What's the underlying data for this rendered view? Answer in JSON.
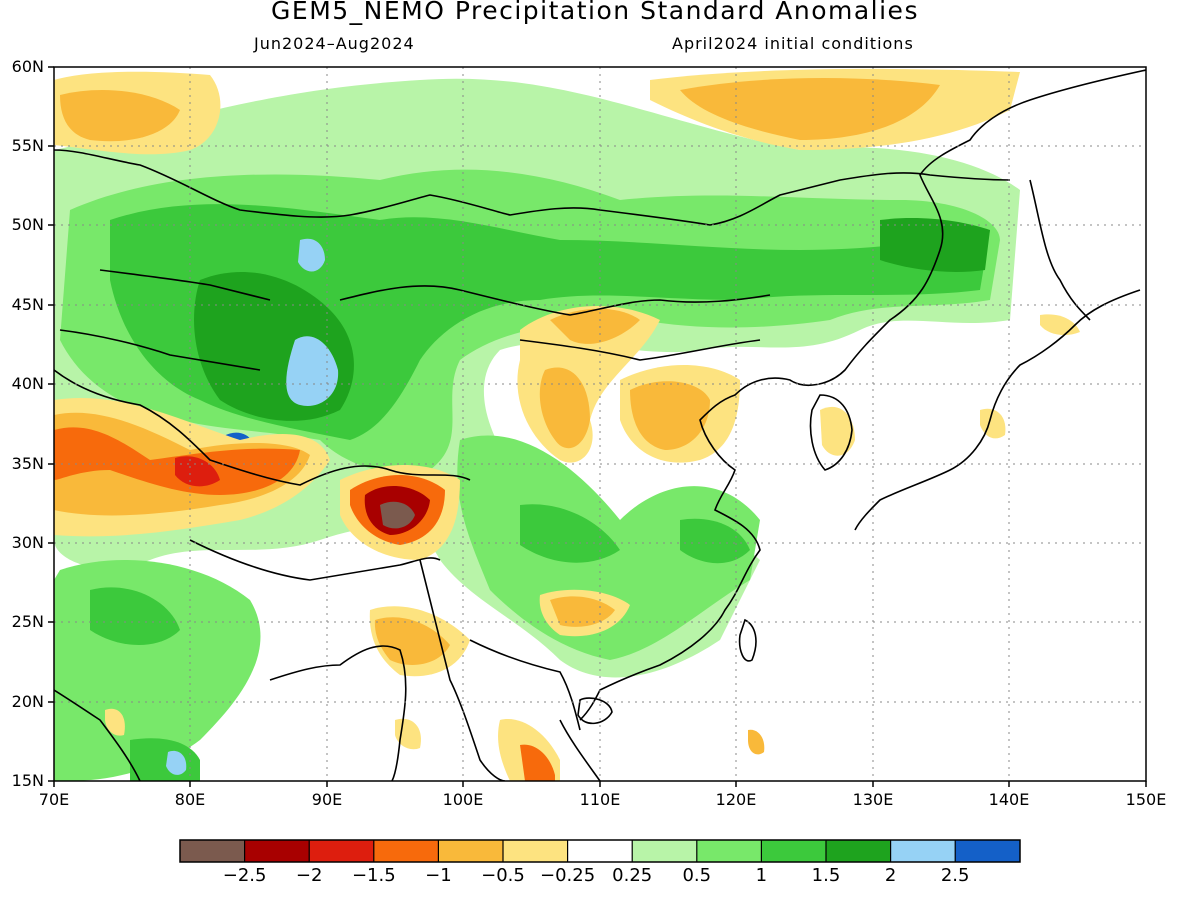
{
  "header": {
    "title": "GEM5_NEMO Precipitation Standard Anomalies",
    "period": "Jun2024–Aug2024",
    "init": "April2024 initial conditions"
  },
  "map": {
    "lat_labels": [
      "60N",
      "55N",
      "50N",
      "45N",
      "40N",
      "35N",
      "30N",
      "25N",
      "20N",
      "15N"
    ],
    "lon_labels": [
      "70E",
      "80E",
      "90E",
      "100E",
      "110E",
      "120E",
      "130E",
      "140E",
      "150E"
    ],
    "lat_range": [
      15,
      60
    ],
    "lon_range": [
      70,
      150
    ],
    "grid": "dotted"
  },
  "colorbar": {
    "colors": [
      "#7b5a4e",
      "#a80000",
      "#dd1e0e",
      "#f76a0c",
      "#f9b93a",
      "#fde380",
      "#ffffff",
      "#b8f4a8",
      "#78e86a",
      "#3cc93c",
      "#1ea31e",
      "#96d2f5",
      "#1460c8"
    ],
    "labels": [
      "−2.5",
      "−2",
      "−1.5",
      "−1",
      "−0.5",
      "−0.25",
      "0.25",
      "0.5",
      "1",
      "1.5",
      "2",
      "2.5"
    ]
  }
}
